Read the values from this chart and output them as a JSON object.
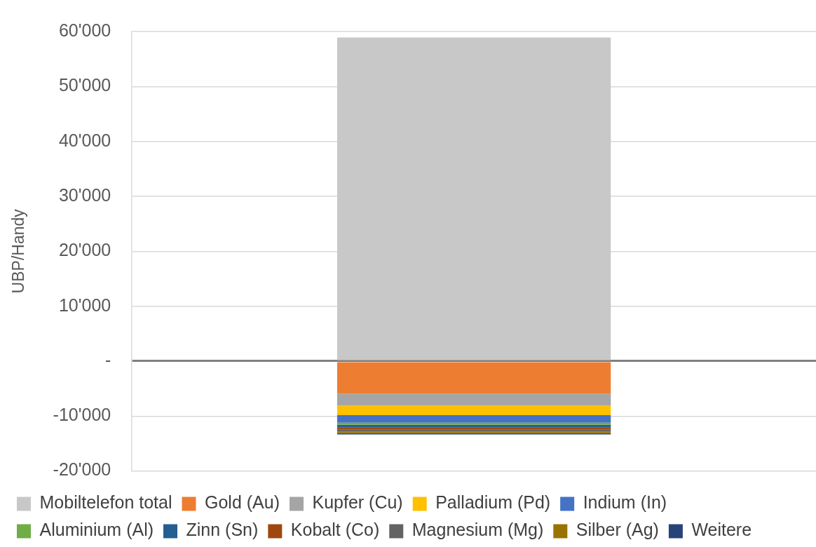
{
  "chart_data": {
    "type": "bar",
    "stacked": true,
    "ylabel": "UBP/Handy",
    "categories": [
      null
    ],
    "ylim": [
      -20000,
      60000
    ],
    "yticks": [
      {
        "value": -20000,
        "label": "-20'000"
      },
      {
        "value": -10000,
        "label": "-10'000"
      },
      {
        "value": 0,
        "label": "-"
      },
      {
        "value": 10000,
        "label": "10'000"
      },
      {
        "value": 20000,
        "label": "20'000"
      },
      {
        "value": 30000,
        "label": "30'000"
      },
      {
        "value": 40000,
        "label": "40'000"
      },
      {
        "value": 50000,
        "label": "50'000"
      },
      {
        "value": 60000,
        "label": "60'000"
      }
    ],
    "grid": "y",
    "legend": "bottom",
    "series": [
      {
        "name": "Mobiltelefon total",
        "color": "#c8c8c8",
        "values": [
          58900
        ]
      },
      {
        "name": "Gold (Au)",
        "color": "#ed7d31",
        "values": [
          -5900
        ]
      },
      {
        "name": "Kupfer (Cu)",
        "color": "#a5a5a5",
        "values": [
          -2200
        ]
      },
      {
        "name": "Palladium (Pd)",
        "color": "#ffc000",
        "values": [
          -1750
        ]
      },
      {
        "name": "Indium (In)",
        "color": "#4472c4",
        "values": [
          -1350
        ]
      },
      {
        "name": "Aluminium (Al)",
        "color": "#70ad47",
        "values": [
          -400
        ]
      },
      {
        "name": "Zinn (Sn)",
        "color": "#255e91",
        "values": [
          -500
        ]
      },
      {
        "name": "Kobalt (Co)",
        "color": "#9e480e",
        "values": [
          -400
        ]
      },
      {
        "name": "Magnesium (Mg)",
        "color": "#636363",
        "values": [
          -300
        ]
      },
      {
        "name": "Silber (Ag)",
        "color": "#997300",
        "values": [
          -300
        ]
      },
      {
        "name": "Weitere",
        "color": "#264478",
        "values": [
          -250
        ]
      }
    ]
  }
}
